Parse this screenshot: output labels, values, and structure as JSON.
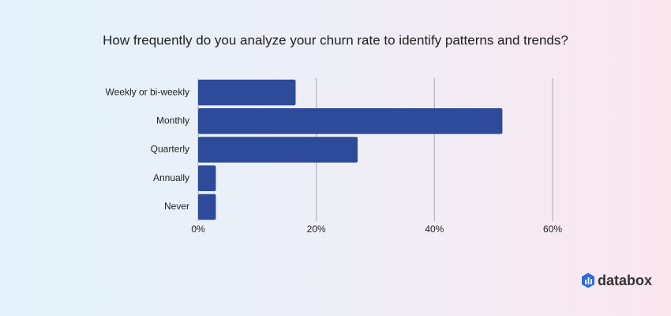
{
  "chart_data": {
    "type": "hbar",
    "title": "How frequently do you analyze your churn rate to identify patterns and trends?",
    "categories": [
      "Weekly or bi-weekly",
      "Monthly",
      "Quarterly",
      "Annually",
      "Never"
    ],
    "values": [
      16.5,
      51.5,
      27,
      3,
      3
    ],
    "color": "#2e4a9a",
    "xlim": [
      0,
      60
    ],
    "xticks": [
      {
        "value": 0,
        "label": "0%"
      },
      {
        "value": 20,
        "label": "20%"
      },
      {
        "value": 40,
        "label": "40%"
      },
      {
        "value": 60,
        "label": "60%"
      }
    ],
    "grid": true
  },
  "brand": "databox"
}
